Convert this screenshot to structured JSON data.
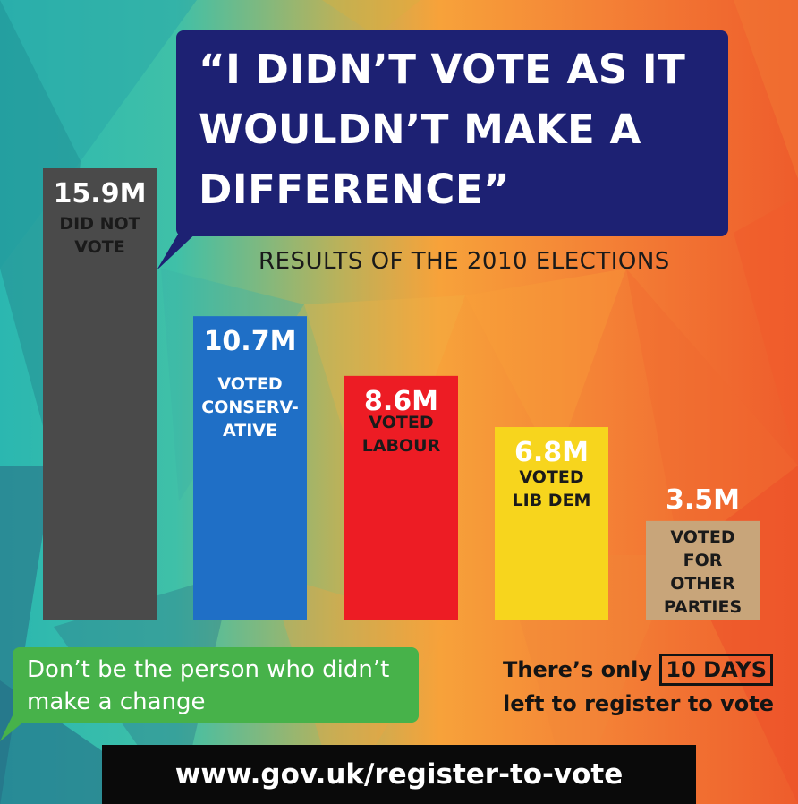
{
  "headline": {
    "line1": "“I DIDN’T VOTE AS IT",
    "line2": "WOULDN’T MAKE A",
    "line3": "DIFFERENCE”"
  },
  "subtitle": "RESULTS OF THE 2010 ELECTIONS",
  "chart_data": {
    "type": "bar",
    "title": "RESULTS OF THE 2010 ELECTIONS",
    "categories": [
      "DID NOT VOTE",
      "VOTED CONSERVATIVE",
      "VOTED LABOUR",
      "VOTED LIB DEM",
      "VOTED FOR OTHER PARTIES"
    ],
    "values": [
      15.9,
      10.7,
      8.6,
      6.8,
      3.5
    ],
    "unit": "M",
    "value_labels": [
      "15.9M",
      "10.7M",
      "8.6M",
      "6.8M",
      "3.5M"
    ],
    "label_lines": [
      [
        "DID NOT",
        "VOTE"
      ],
      [
        "VOTED",
        "CONSERV-",
        "ATIVE"
      ],
      [
        "VOTED",
        "LABOUR"
      ],
      [
        "VOTED",
        "LIB DEM"
      ],
      [
        "VOTED",
        "FOR",
        "OTHER",
        "PARTIES"
      ]
    ],
    "colors": [
      "#4a4a4a",
      "#1f6fc6",
      "#ed1c24",
      "#f7d51d",
      "#c8a57a"
    ],
    "label_colors": [
      "#1a1a1a",
      "#ffffff",
      "#1a1a1a",
      "#1a1a1a",
      "#1a1a1a"
    ],
    "ylim": [
      0,
      15.9
    ],
    "grid": false
  },
  "bubble_text": {
    "line1": "Don’t be the person who didn’t",
    "line2": "make a change"
  },
  "register": {
    "prefix": "There’s only",
    "days": "10 DAYS",
    "line2": "left to register to vote"
  },
  "url": "www.gov.uk/register-to-vote",
  "colors": {
    "quote_box": "#1d2173",
    "green_bubble": "#47b24a",
    "url_bar": "#0a0a0a"
  }
}
